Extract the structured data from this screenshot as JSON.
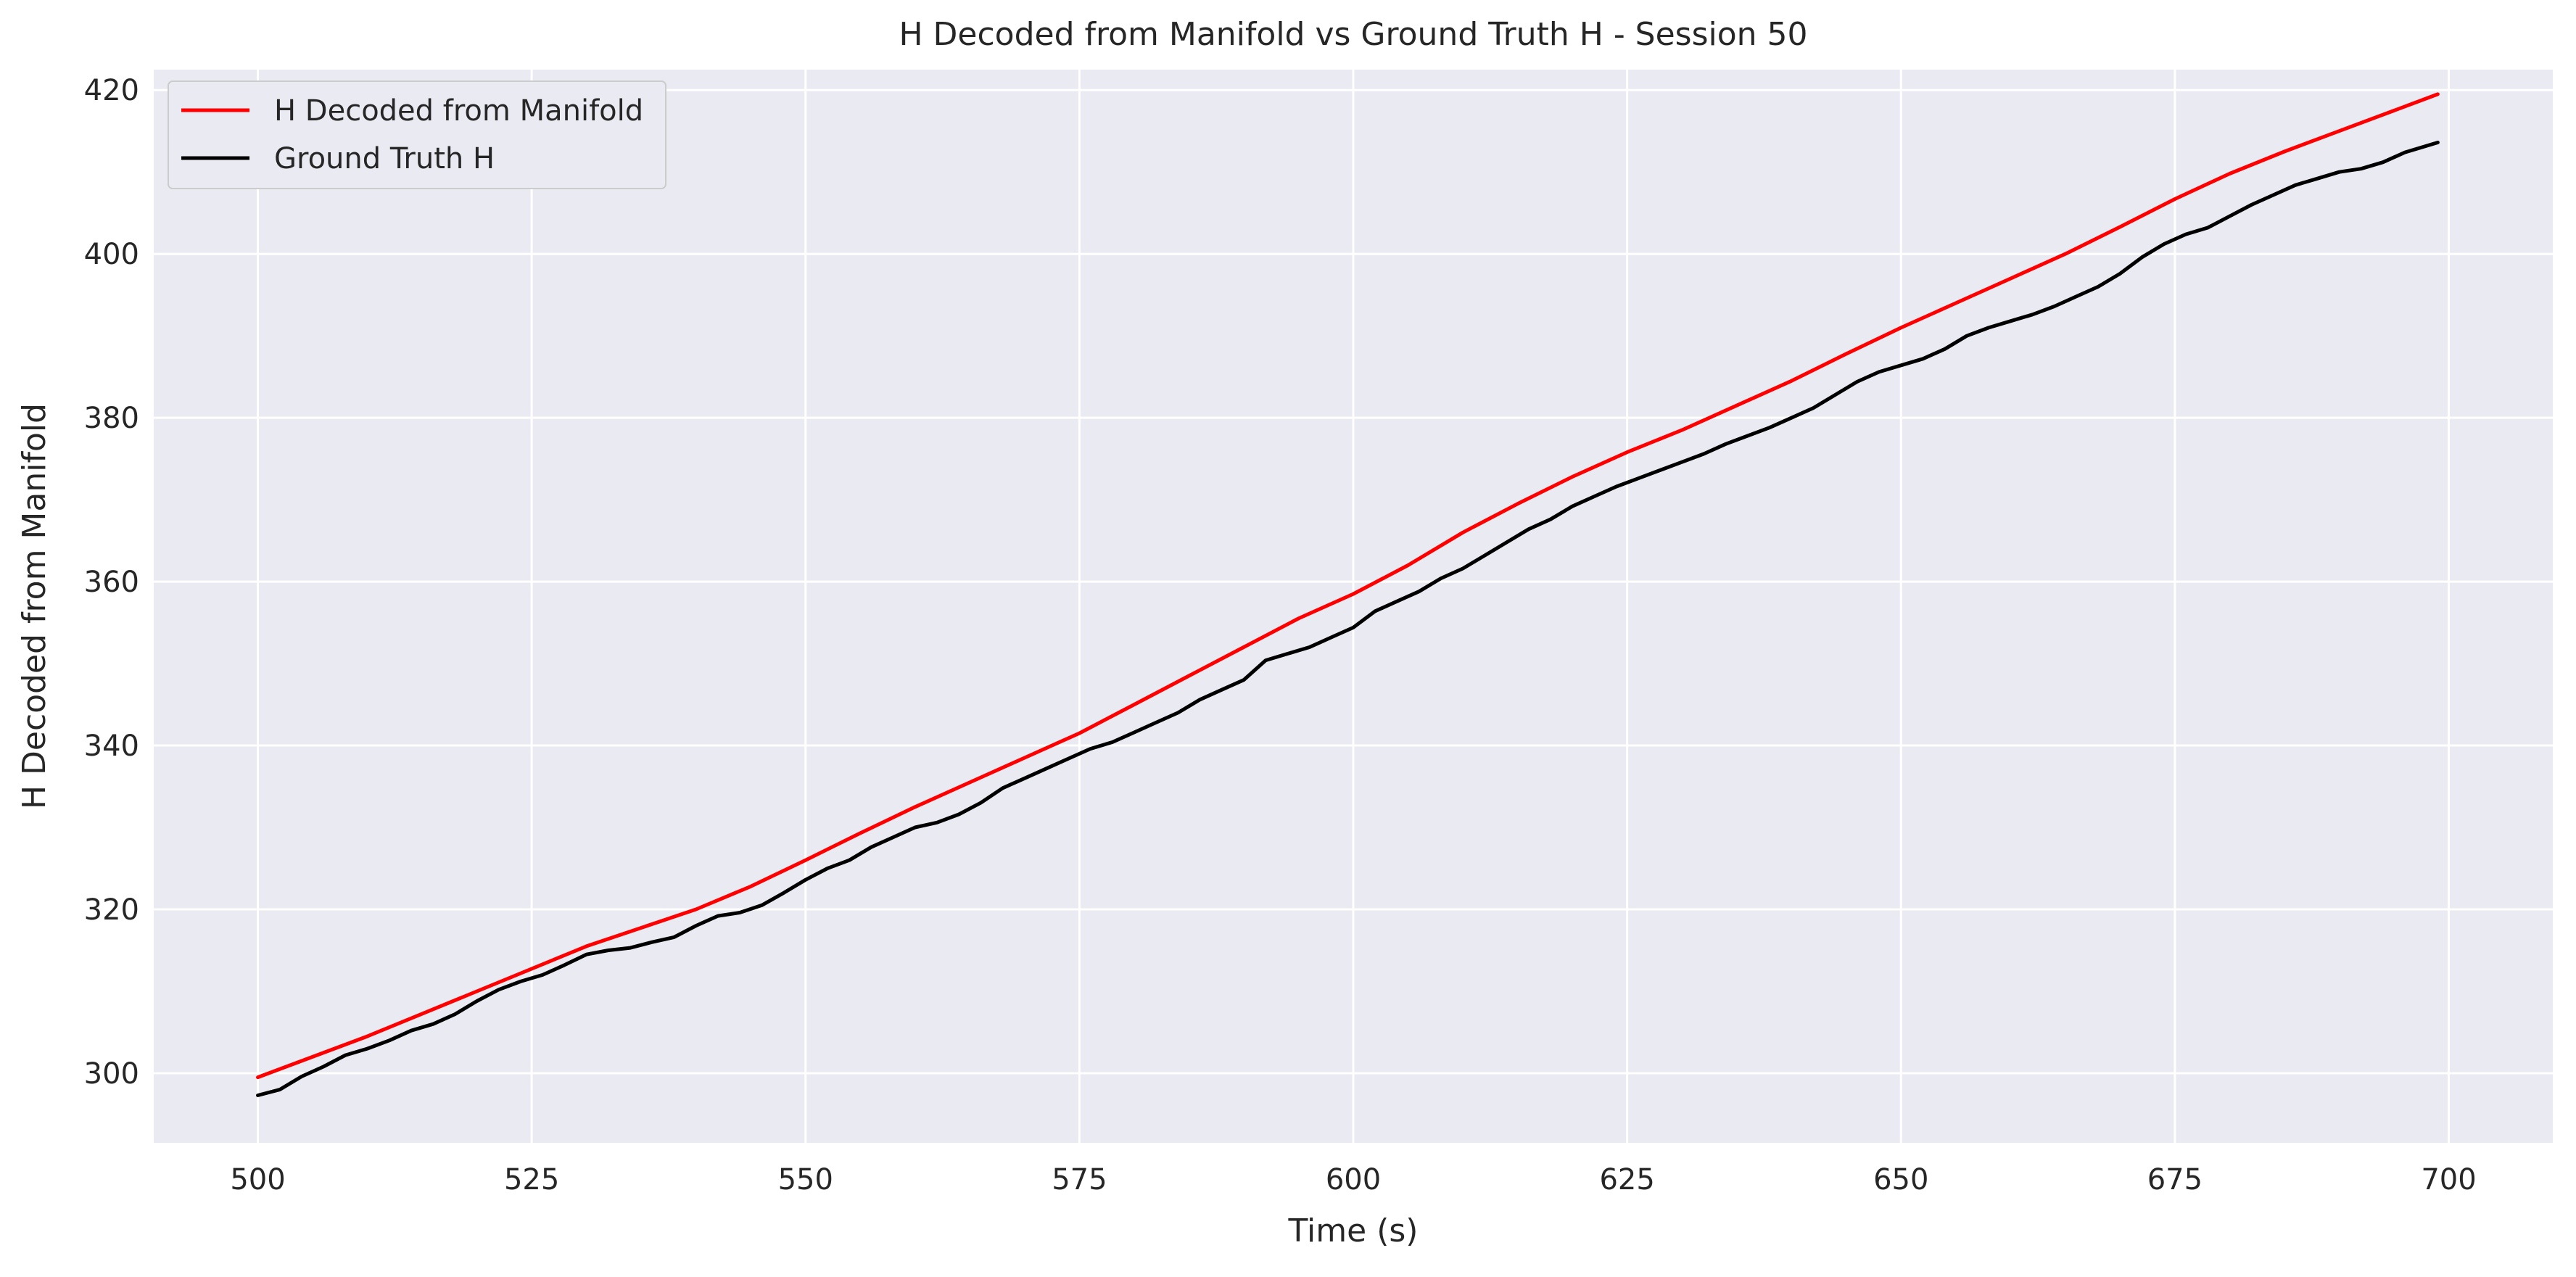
{
  "chart_data": {
    "type": "line",
    "title": "H Decoded from Manifold vs Ground Truth H - Session 50",
    "xlabel": "Time (s)",
    "ylabel": "H Decoded from Manifold",
    "xlim": [
      490.5,
      709.5
    ],
    "ylim": [
      291.5,
      422.5
    ],
    "xticks": [
      500,
      525,
      550,
      575,
      600,
      625,
      650,
      675,
      700
    ],
    "yticks": [
      300,
      320,
      340,
      360,
      380,
      400,
      420
    ],
    "grid": true,
    "legend_position": "upper-left",
    "background_color": "#eaeaf2",
    "grid_color": "#ffffff",
    "series": [
      {
        "name": "H Decoded from Manifold",
        "color": "#ff0000",
        "x": [
          500,
          510,
          520,
          530,
          540,
          545,
          550,
          555,
          560,
          565,
          570,
          575,
          580,
          585,
          590,
          595,
          600,
          605,
          610,
          615,
          620,
          625,
          630,
          635,
          640,
          645,
          650,
          655,
          660,
          665,
          670,
          675,
          680,
          685,
          690,
          695,
          699
        ],
        "y": [
          299.5,
          304.5,
          310.0,
          315.5,
          320.0,
          322.8,
          326.0,
          329.3,
          332.5,
          335.5,
          338.5,
          341.5,
          345.0,
          348.5,
          352.0,
          355.5,
          358.5,
          362.0,
          366.0,
          369.5,
          372.8,
          375.8,
          378.5,
          381.5,
          384.5,
          387.8,
          391.0,
          394.0,
          397.0,
          400.0,
          403.3,
          406.7,
          409.8,
          412.5,
          415.0,
          417.5,
          419.5
        ]
      },
      {
        "name": "Ground Truth H",
        "color": "#000000",
        "x": [
          500,
          502,
          504,
          506,
          508,
          510,
          512,
          514,
          516,
          518,
          520,
          522,
          524,
          526,
          528,
          530,
          532,
          534,
          536,
          538,
          540,
          542,
          544,
          546,
          548,
          550,
          552,
          554,
          556,
          558,
          560,
          562,
          564,
          566,
          568,
          570,
          572,
          574,
          576,
          578,
          580,
          582,
          584,
          586,
          588,
          590,
          592,
          594,
          596,
          598,
          600,
          602,
          604,
          606,
          608,
          610,
          612,
          614,
          616,
          618,
          620,
          622,
          624,
          626,
          628,
          630,
          632,
          634,
          636,
          638,
          640,
          642,
          644,
          646,
          648,
          650,
          652,
          654,
          656,
          658,
          660,
          662,
          664,
          666,
          668,
          670,
          672,
          674,
          676,
          678,
          680,
          682,
          684,
          686,
          688,
          690,
          692,
          694,
          696,
          699
        ],
        "y": [
          297.3,
          298.0,
          299.6,
          300.8,
          302.2,
          303.0,
          304.0,
          305.2,
          306.0,
          307.2,
          308.8,
          310.2,
          311.2,
          312.0,
          313.2,
          314.5,
          315.0,
          315.3,
          316.0,
          316.6,
          318.0,
          319.2,
          319.6,
          320.5,
          322.0,
          323.6,
          325.0,
          326.0,
          327.6,
          328.8,
          330.0,
          330.6,
          331.6,
          333.0,
          334.8,
          336.0,
          337.2,
          338.4,
          339.6,
          340.4,
          341.6,
          342.8,
          344.0,
          345.6,
          346.8,
          348.0,
          350.4,
          351.2,
          352.0,
          353.2,
          354.4,
          356.4,
          357.6,
          358.8,
          360.4,
          361.6,
          363.2,
          364.8,
          366.4,
          367.6,
          369.2,
          370.4,
          371.6,
          372.6,
          373.6,
          374.6,
          375.6,
          376.8,
          377.8,
          378.8,
          380.0,
          381.2,
          382.8,
          384.4,
          385.6,
          386.4,
          387.2,
          388.4,
          390.0,
          391.0,
          391.8,
          392.6,
          393.6,
          394.8,
          396.0,
          397.6,
          399.6,
          401.2,
          402.4,
          403.2,
          404.6,
          406.0,
          407.2,
          408.4,
          409.2,
          410.0,
          410.4,
          411.2,
          412.4,
          413.6
        ]
      }
    ]
  }
}
